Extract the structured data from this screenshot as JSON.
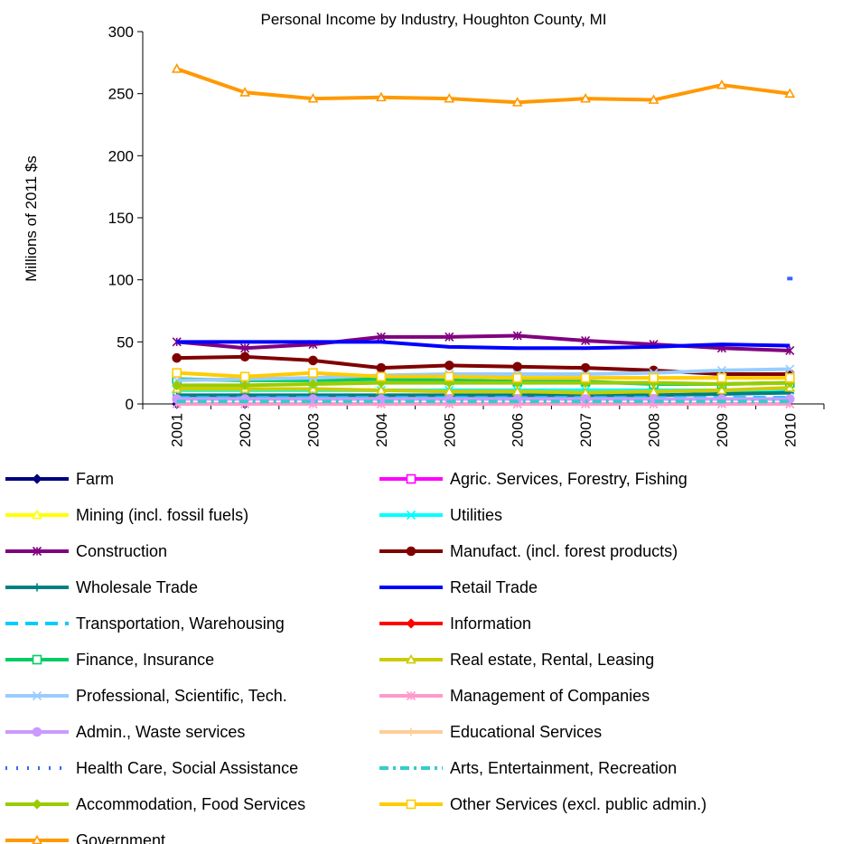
{
  "chart_data": {
    "type": "line",
    "title": "Personal Income by Industry, Houghton County, MI",
    "xlabel": "",
    "ylabel": "Millions of 2011 $s",
    "ylim": [
      0,
      300
    ],
    "yticks": [
      "0",
      "50",
      "100",
      "150",
      "200",
      "250",
      "300"
    ],
    "categories": [
      "2001",
      "2002",
      "2003",
      "2004",
      "2005",
      "2006",
      "2007",
      "2008",
      "2009",
      "2010"
    ],
    "grid": false,
    "legend_position": "bottom",
    "series": [
      {
        "name": "Farm",
        "color": "#000080",
        "marker": "diamond",
        "values": [
          0,
          0,
          null,
          null,
          null,
          null,
          null,
          null,
          null,
          null
        ]
      },
      {
        "name": "Agric. Services, Forestry, Fishing",
        "color": "#ff00ff",
        "marker": "square",
        "values": [
          null,
          null,
          null,
          null,
          null,
          null,
          null,
          null,
          null,
          null
        ]
      },
      {
        "name": "Mining (incl. fossil fuels)",
        "color": "#ffff00",
        "marker": "triangle",
        "values": [
          null,
          null,
          null,
          null,
          null,
          null,
          null,
          null,
          null,
          null
        ]
      },
      {
        "name": "Utilities",
        "color": "#00ffff",
        "marker": "x",
        "values": [
          11,
          11,
          11,
          11,
          11,
          11,
          11,
          11,
          11,
          11
        ]
      },
      {
        "name": "Construction",
        "color": "#800080",
        "marker": "star",
        "values": [
          50,
          45,
          48,
          54,
          54,
          55,
          51,
          48,
          45,
          43
        ]
      },
      {
        "name": "Manufact. (incl. forest products)",
        "color": "#800000",
        "marker": "circle",
        "values": [
          37,
          38,
          35,
          29,
          31,
          30,
          29,
          27,
          24,
          24
        ]
      },
      {
        "name": "Wholesale Trade",
        "color": "#008080",
        "marker": "plus",
        "values": [
          7,
          7,
          7,
          7,
          7,
          7,
          7,
          7,
          8,
          9
        ]
      },
      {
        "name": "Retail Trade",
        "color": "#0000ff",
        "marker": "none",
        "values": [
          50,
          50,
          50,
          50,
          46,
          45,
          45,
          46,
          48,
          47
        ]
      },
      {
        "name": "Transportation, Warehousing",
        "color": "#00ccff",
        "marker": "none",
        "dash": "dash",
        "values": [
          5,
          5,
          5,
          5,
          5,
          5,
          5,
          5,
          5,
          5
        ]
      },
      {
        "name": "Information",
        "color": "#ff0000",
        "marker": "diamond",
        "values": [
          null,
          null,
          null,
          null,
          null,
          null,
          null,
          null,
          null,
          null
        ]
      },
      {
        "name": "Finance, Insurance",
        "color": "#00cc66",
        "marker": "square",
        "values": [
          20,
          19,
          19,
          20,
          19,
          18,
          18,
          16,
          16,
          17
        ]
      },
      {
        "name": "Real estate, Rental, Leasing",
        "color": "#cccc00",
        "marker": "triangle",
        "values": [
          12,
          12,
          12,
          11,
          10,
          10,
          9,
          10,
          11,
          13
        ]
      },
      {
        "name": "Professional, Scientific, Tech.",
        "color": "#99ccff",
        "marker": "x",
        "values": [
          19,
          20,
          21,
          23,
          24,
          24,
          24,
          25,
          27,
          28
        ]
      },
      {
        "name": "Management of Companies",
        "color": "#ff99cc",
        "marker": "star",
        "values": [
          0,
          0,
          0,
          0,
          0,
          0,
          0,
          0,
          0,
          0
        ]
      },
      {
        "name": "Admin., Waste services",
        "color": "#cc99ff",
        "marker": "circle",
        "values": [
          4,
          4,
          4,
          4,
          4,
          4,
          4,
          4,
          4,
          4
        ]
      },
      {
        "name": "Educational Services",
        "color": "#ffcc99",
        "marker": "plus",
        "values": [
          null,
          null,
          null,
          null,
          null,
          null,
          null,
          null,
          null,
          null
        ]
      },
      {
        "name": "Health Care, Social Assistance",
        "color": "#3366ff",
        "marker": "none",
        "dash": "dot",
        "values": [
          null,
          null,
          null,
          null,
          null,
          null,
          null,
          null,
          null,
          101
        ]
      },
      {
        "name": "Arts, Entertainment, Recreation",
        "color": "#33cccc",
        "marker": "none",
        "dash": "dashdot",
        "values": [
          2,
          2,
          2,
          2,
          2,
          2,
          2,
          2,
          2,
          2
        ]
      },
      {
        "name": "Accommodation, Food Services",
        "color": "#99cc00",
        "marker": "diamond",
        "values": [
          15,
          15,
          16,
          17,
          17,
          17,
          17,
          17,
          16,
          17
        ]
      },
      {
        "name": "Other Services (excl. public admin.)",
        "color": "#ffcc00",
        "marker": "square",
        "values": [
          25,
          22,
          25,
          22,
          22,
          21,
          21,
          21,
          21,
          21
        ]
      },
      {
        "name": "Government",
        "color": "#ff9900",
        "marker": "triangle",
        "values": [
          270,
          251,
          246,
          247,
          246,
          243,
          246,
          245,
          257,
          250
        ]
      }
    ]
  }
}
